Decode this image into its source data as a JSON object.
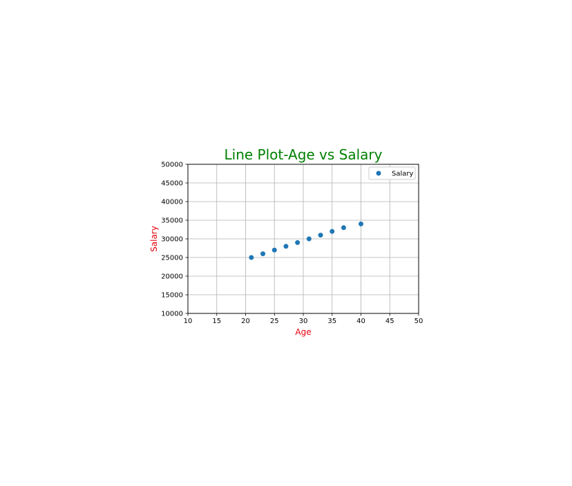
{
  "chart_data": {
    "type": "scatter",
    "title": "Line Plot-Age vs Salary",
    "title_color": "#008000",
    "xlabel": "Age",
    "ylabel": "Salary",
    "label_color": "#e8000b",
    "xlim": [
      10,
      50
    ],
    "ylim": [
      10000,
      50000
    ],
    "xticks": [
      "10",
      "15",
      "20",
      "25",
      "30",
      "35",
      "40",
      "45",
      "50"
    ],
    "yticks": [
      "10000",
      "15000",
      "20000",
      "25000",
      "30000",
      "35000",
      "40000",
      "45000",
      "50000"
    ],
    "grid": true,
    "legend_position": "top-right",
    "series": [
      {
        "name": "Salary",
        "color": "#1f77b4",
        "x": [
          21,
          23,
          25,
          27,
          29,
          31,
          33,
          35,
          37,
          40
        ],
        "y": [
          25000,
          26000,
          27000,
          28000,
          29000,
          30000,
          31000,
          32000,
          33000,
          34000
        ]
      }
    ]
  }
}
